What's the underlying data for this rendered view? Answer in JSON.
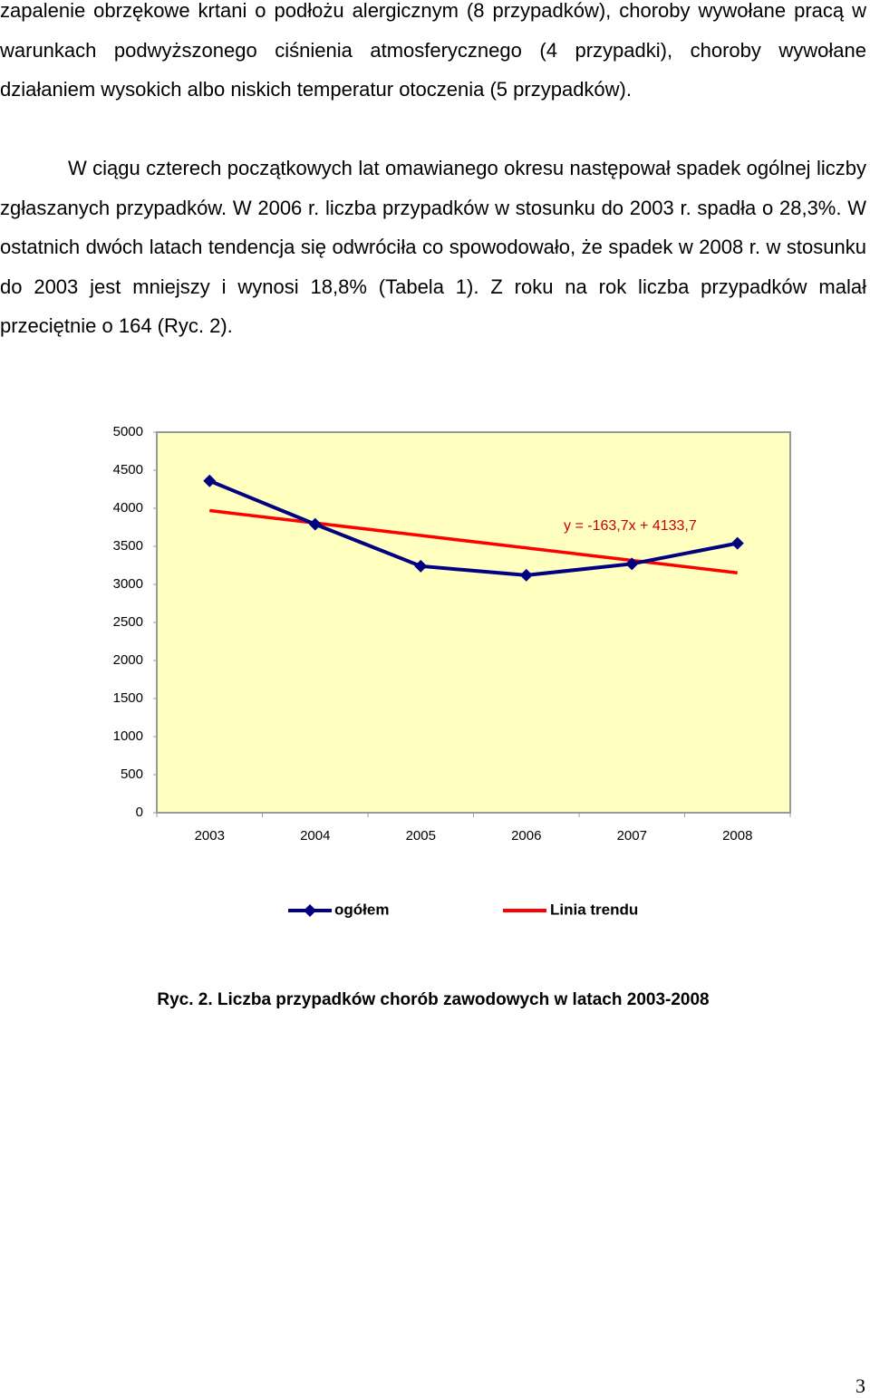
{
  "paragraphs": [
    "zapalenie obrzękowe krtani o podłożu alergicznym (8 przypadków), choroby wywołane pracą w warunkach podwyższonego ciśnienia atmosferycznego (4 przypadki), choroby wywołane działaniem wysokich albo niskich temperatur otoczenia (5 przypadków).",
    "W ciągu czterech początkowych lat omawianego okresu następował spadek ogólnej liczby zgłaszanych przypadków. W 2006 r. liczba przypadków w stosunku do 2003 r. spadła o 28,3%. W ostatnich dwóch latach tendencja się odwróciła co spowodowało, że spadek w 2008 r. w stosunku do 2003 jest mniejszy i wynosi 18,8% (Tabela 1). Z roku na rok liczba przypadków malał przeciętnie o 164 (Ryc. 2)."
  ],
  "chart_data": {
    "type": "line",
    "categories": [
      "2003",
      "2004",
      "2005",
      "2006",
      "2007",
      "2008"
    ],
    "series": [
      {
        "name": "ogółem",
        "color": "#000080",
        "values": [
          4360,
          3790,
          3240,
          3120,
          3270,
          3540
        ]
      },
      {
        "name": "Linia trendu",
        "color": "#ff0000",
        "values": [
          3970,
          3806.3,
          3642.6,
          3478.9,
          3315.2,
          3151.5
        ]
      }
    ],
    "annotation": "y = -163,7x + 4133,7",
    "ylim": [
      0,
      5000
    ],
    "yticks": [
      0,
      500,
      1000,
      1500,
      2000,
      2500,
      3000,
      3500,
      4000,
      4500,
      5000
    ],
    "plot_background": "#ffffc0"
  },
  "caption": "Ryc. 2. Liczba przypadków chorób zawodowych w latach 2003-2008",
  "page_number": "3"
}
